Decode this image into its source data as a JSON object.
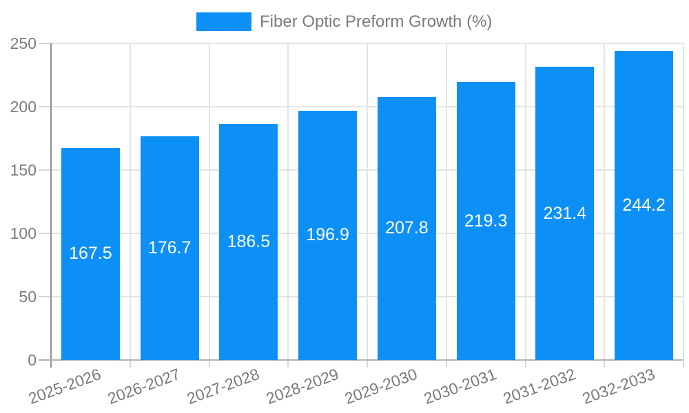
{
  "chart_data": {
    "type": "bar",
    "title": "",
    "legend": {
      "label": "Fiber Optic Preform Growth (%)",
      "position": "top-center"
    },
    "categories": [
      "2025-2026",
      "2026-2027",
      "2027-2028",
      "2028-2029",
      "2029-2030",
      "2030-2031",
      "2031-2032",
      "2032-2033"
    ],
    "series": [
      {
        "name": "Fiber Optic Preform Growth (%)",
        "values": [
          167.5,
          176.7,
          186.5,
          196.9,
          207.8,
          219.3,
          231.4,
          244.2
        ]
      }
    ],
    "value_labels": [
      "167.5",
      "176.7",
      "186.5",
      "196.9",
      "207.8",
      "219.3",
      "231.4",
      "244.2"
    ],
    "ylim": [
      0,
      250
    ],
    "yticks": [
      0,
      50,
      100,
      150,
      200,
      250
    ],
    "grid": "horizontal and vertical, light gray",
    "legend_position": "top-center",
    "colors": {
      "bar": "#0d90f6",
      "value_label_text": "#ffffff",
      "axis_text": "#7a7a7a",
      "gridline": "#e3e3e3",
      "y_axis_line": "#8f8f8f",
      "x_axis_line": "#b3b3b3",
      "tick": "#d6d6d6",
      "background": "#ffffff"
    }
  }
}
